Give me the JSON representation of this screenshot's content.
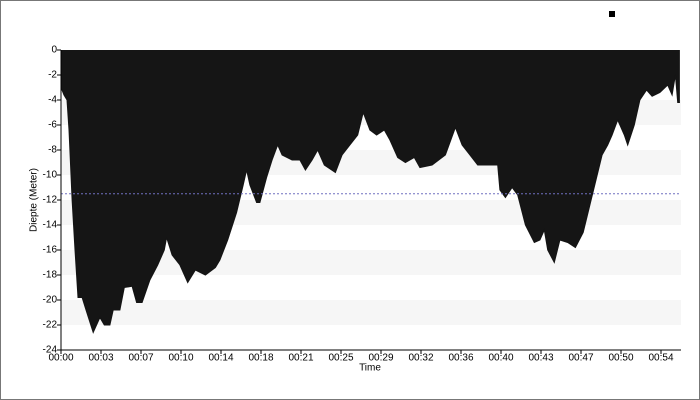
{
  "chart_data": {
    "type": "area",
    "x_label": "Time",
    "y_label": "Diepte (Meter)",
    "color": "#151515",
    "reference_line": -11.5,
    "x": [
      0,
      0.27,
      0.54,
      0.72,
      1.0,
      1.26,
      1.53,
      1.9,
      2.25,
      2.9,
      3.5,
      3.9,
      4.4,
      4.7,
      5.3,
      5.7,
      6.4,
      6.8,
      7.3,
      8.0,
      8.7,
      9.3,
      9.5,
      10.0,
      10.7,
      11.4,
      12.1,
      13.0,
      13.9,
      14.3,
      15.0,
      15.8,
      16.4,
      16.7,
      17.0,
      17.6,
      17.9,
      18.5,
      19.0,
      19.5,
      19.9,
      20.8,
      21.5,
      22.0,
      22.6,
      23.1,
      23.7,
      24.7,
      25.3,
      26.0,
      26.7,
      27.2,
      27.8,
      28.4,
      29.1,
      29.6,
      30.3,
      31.0,
      31.8,
      32.3,
      33.4,
      34.6,
      35.5,
      36.1,
      36.8,
      37.5,
      38.6,
      39.3,
      39.5,
      40.0,
      40.6,
      41.1,
      41.8,
      42.6,
      43.1,
      43.5,
      43.8,
      44.4,
      44.9,
      45.6,
      46.3,
      47.0,
      47.6,
      48.2,
      48.7,
      49.2,
      49.6,
      50.1,
      50.7,
      51.0,
      51.6,
      52.1,
      52.7,
      53.2,
      53.9,
      54.6,
      55.0,
      55.3,
      55.5,
      55.7
    ],
    "values": [
      -3,
      -3.6,
      -4,
      -6.4,
      -12,
      -16,
      -19.8,
      -19.8,
      -20.8,
      -22.6,
      -21.4,
      -22,
      -22,
      -20.8,
      -20.8,
      -19,
      -18.9,
      -20.2,
      -20.2,
      -18.4,
      -17.2,
      -16,
      -15,
      -16.4,
      -17.2,
      -18.6,
      -17.6,
      -18,
      -17.4,
      -16.8,
      -15.2,
      -13,
      -10.8,
      -9.6,
      -10.8,
      -12.2,
      -12.2,
      -10.2,
      -8.8,
      -7.6,
      -8.4,
      -8.8,
      -8.8,
      -9.6,
      -8.8,
      -8,
      -9.2,
      -9.8,
      -8.4,
      -7.6,
      -6.8,
      -5,
      -6.4,
      -6.8,
      -6.4,
      -7.2,
      -8.6,
      -9,
      -8.6,
      -9.4,
      -9.2,
      -8.4,
      -6.2,
      -7.6,
      -8.4,
      -9.2,
      -9.2,
      -9.2,
      -11.2,
      -11.8,
      -11,
      -11.6,
      -14,
      -15.4,
      -15.2,
      -14.4,
      -16,
      -17,
      -15.2,
      -15.4,
      -15.8,
      -14.6,
      -12.4,
      -10.2,
      -8.4,
      -7.6,
      -6.8,
      -5.6,
      -6.8,
      -7.6,
      -6,
      -4,
      -3.2,
      -3.7,
      -3.4,
      -2.8,
      -3.6,
      -2,
      -4.2,
      -4.2
    ],
    "xlim": [
      0,
      55.8
    ],
    "ylim": [
      -24,
      0
    ],
    "xticks": [
      {
        "value": 0,
        "label": "00:00"
      },
      {
        "value": 3.6,
        "label": "00:03"
      },
      {
        "value": 7.2,
        "label": "00:07"
      },
      {
        "value": 10.8,
        "label": "00:10"
      },
      {
        "value": 14.4,
        "label": "00:14"
      },
      {
        "value": 18,
        "label": "00:18"
      },
      {
        "value": 21.6,
        "label": "00:21"
      },
      {
        "value": 25.2,
        "label": "00:25"
      },
      {
        "value": 28.8,
        "label": "00:29"
      },
      {
        "value": 32.4,
        "label": "00:32"
      },
      {
        "value": 36,
        "label": "00:36"
      },
      {
        "value": 39.6,
        "label": "00:40"
      },
      {
        "value": 43.2,
        "label": "00:43"
      },
      {
        "value": 46.8,
        "label": "00:47"
      },
      {
        "value": 50.4,
        "label": "00:50"
      },
      {
        "value": 54,
        "label": "00:54"
      }
    ],
    "yticks": [
      0,
      -2,
      -4,
      -6,
      -8,
      -10,
      -12,
      -14,
      -16,
      -18,
      -20,
      -22,
      -24
    ]
  }
}
